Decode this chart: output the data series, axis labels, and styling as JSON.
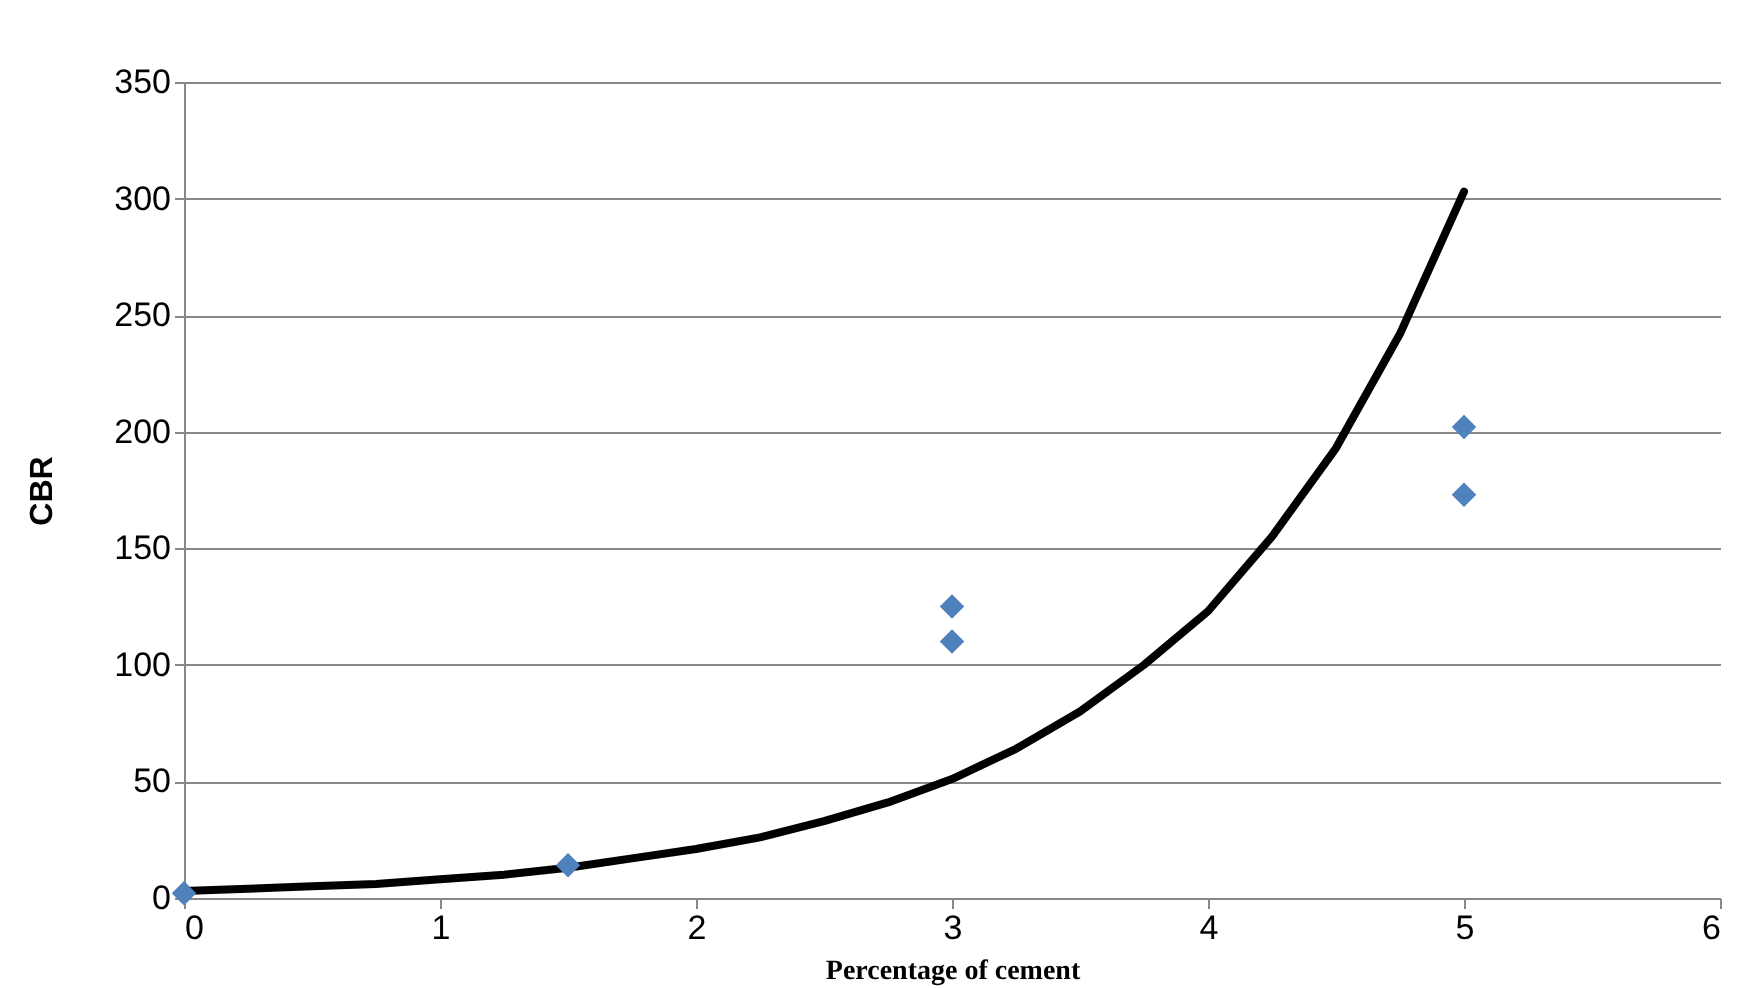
{
  "chart_data": {
    "type": "scatter",
    "xlabel": "Percentage of cement",
    "ylabel": "CBR",
    "xlim": [
      0,
      6
    ],
    "xticks": [
      0,
      1,
      2,
      3,
      4,
      5,
      6
    ],
    "ylim": [
      0,
      350
    ],
    "yticks": [
      0,
      50,
      100,
      150,
      200,
      250,
      300,
      350
    ],
    "grid": "y",
    "marker": "diamond",
    "series": [
      {
        "color": "#4f81bd",
        "x": [
          0,
          1.5,
          3,
          3,
          5,
          5
        ],
        "values": [
          2,
          14,
          125,
          110,
          202,
          173
        ]
      },
      {
        "type": "line",
        "color": "#000000",
        "marker": "none",
        "x": [
          0,
          0.25,
          0.5,
          0.75,
          1,
          1.25,
          1.5,
          1.75,
          2,
          2.25,
          2.5,
          2.75,
          3,
          3.25,
          3.5,
          3.75,
          4,
          4.25,
          4.5,
          4.75,
          5
        ],
        "values": [
          3,
          4,
          5,
          6,
          8,
          10,
          13,
          17,
          21,
          26,
          33,
          41,
          51,
          64,
          80,
          100,
          123,
          155,
          193,
          242,
          303
        ]
      }
    ]
  }
}
